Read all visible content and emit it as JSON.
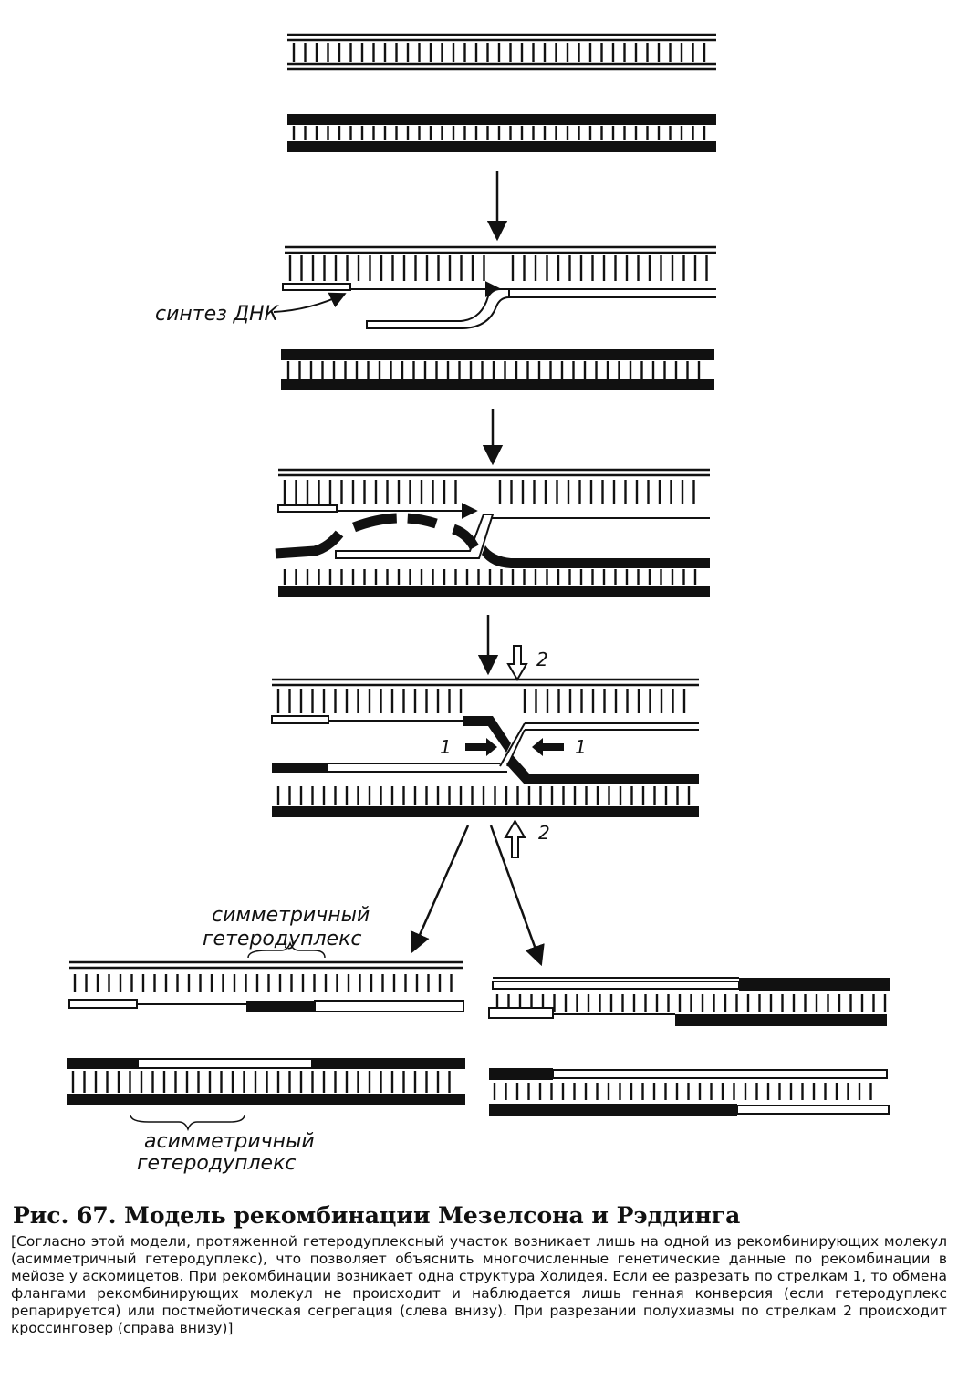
{
  "labels": {
    "dna_synthesis": "синтез ДНК",
    "symmetric_line1": "симметричный",
    "symmetric_line2": "гетеродуплекс",
    "asymmetric_line1": "асимметричный",
    "asymmetric_line2": "гетеродуплекс",
    "cut_1": "1",
    "cut_2": "2"
  },
  "caption": {
    "title": "Рис. 67. Модель рекомбинации Мезелсона и Рэддинга",
    "body": "[Согласно этой модели, протяженной гетеродуплексный участок возникает лишь на одной из рекомбинирующих молекул (асимметричный гетеродуплекс), что позволяет объяснить многочисленные генетические данные по рекомбинации в мейозе у аскомицетов. При рекомбинации возникает одна структура Холидея. Если ее разрезать по стрелкам 1, то обмена флангами рекомбинирующих молекул не происходит и наблюдается лишь генная конверсия (если гетеродуплекс репарируется) или постмейотическая сегрегация (слева внизу). При разрезании полухиазмы по стрелкам 2 происходит кроссинговер (справа внизу)]"
  },
  "colors": {
    "ink": "#111111",
    "paper": "#ffffff"
  }
}
